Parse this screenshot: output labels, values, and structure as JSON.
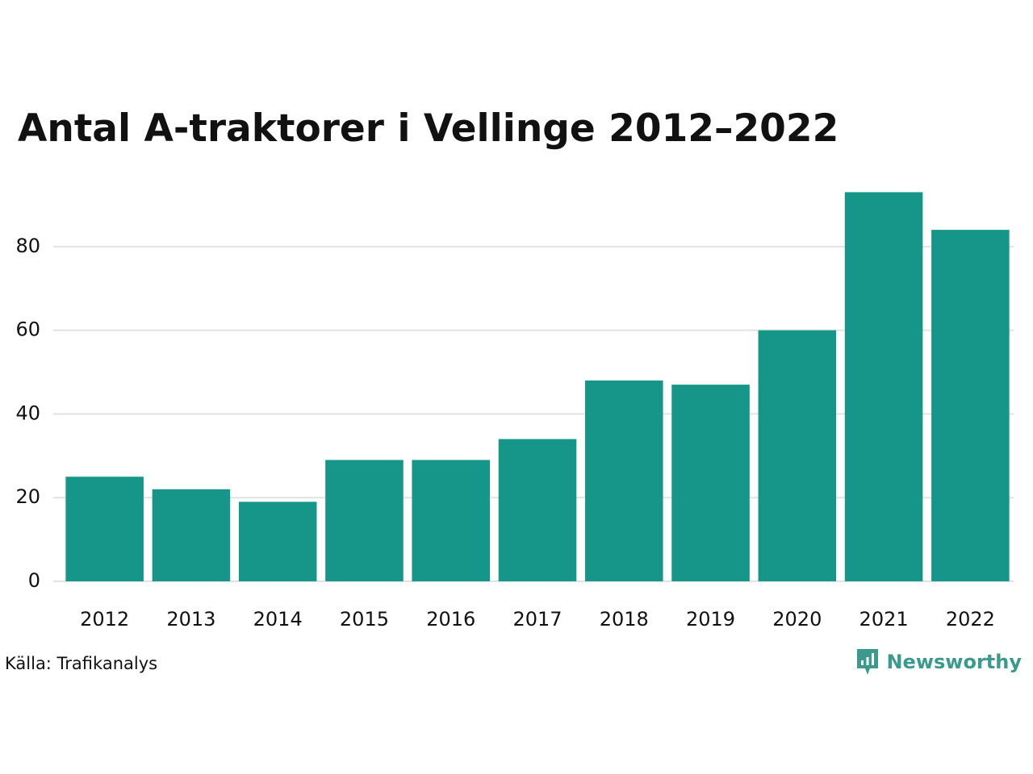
{
  "title": "Antal A-traktorer i Vellinge 2012–2022",
  "source": "Källa: Trafikanalys",
  "brand": {
    "name": "Newsworthy",
    "icon": "newsworthy-logo-icon",
    "color": "#3a9a8c"
  },
  "colors": {
    "bar": "#159688",
    "grid": "#e2e2e2",
    "text": "#111111"
  },
  "chart_data": {
    "type": "bar",
    "title": "Antal A-traktorer i Vellinge 2012–2022",
    "xlabel": "",
    "ylabel": "",
    "categories": [
      "2012",
      "2013",
      "2014",
      "2015",
      "2016",
      "2017",
      "2018",
      "2019",
      "2020",
      "2021",
      "2022"
    ],
    "values": [
      25,
      22,
      19,
      29,
      29,
      34,
      48,
      47,
      60,
      93,
      84
    ],
    "ylim": [
      0,
      95
    ],
    "yticks": [
      0,
      20,
      40,
      60,
      80
    ],
    "grid": true,
    "legend": "none"
  }
}
